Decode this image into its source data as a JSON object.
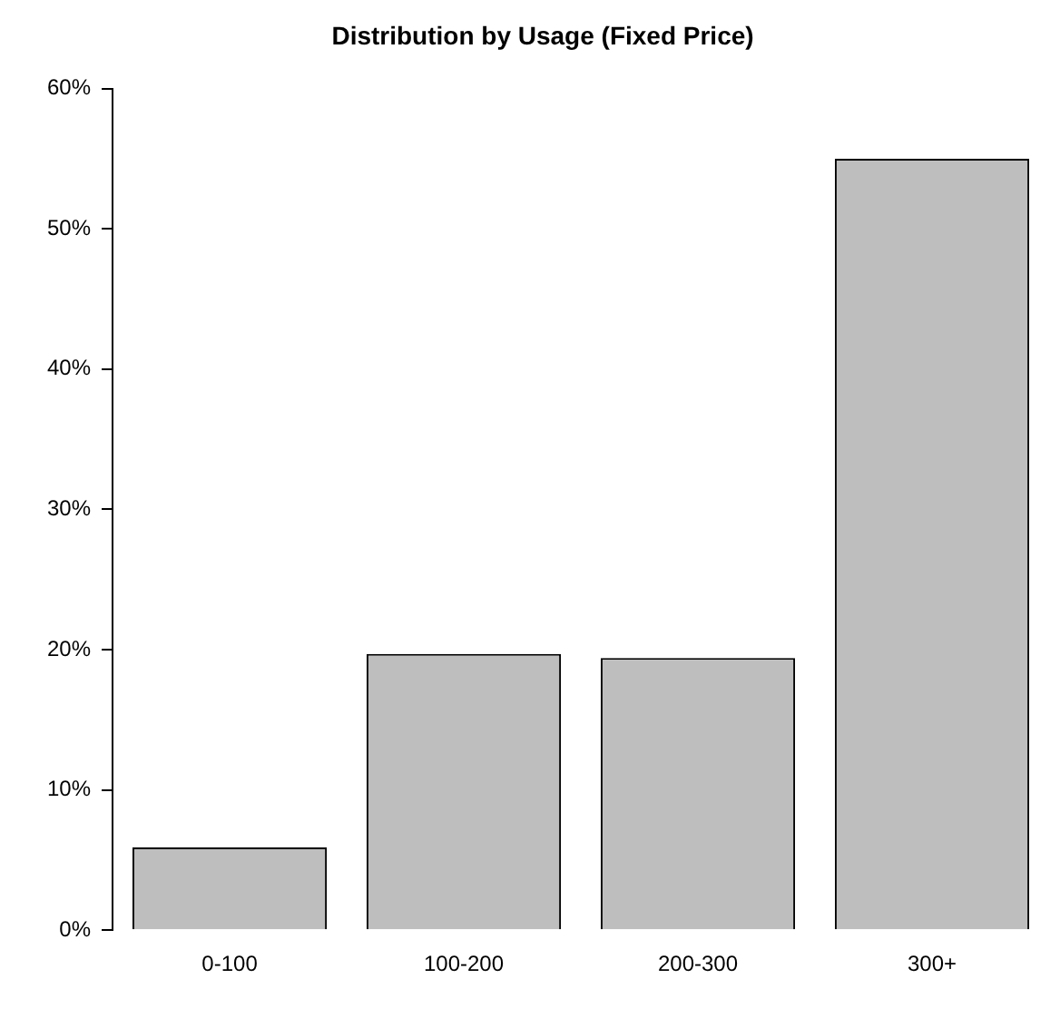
{
  "chart_data": {
    "type": "bar",
    "title": "Distribution by Usage (Fixed Price)",
    "categories": [
      "0-100",
      "100-200",
      "200-300",
      "300+"
    ],
    "values": [
      5.9,
      19.7,
      19.4,
      55.0
    ],
    "color": "#bebebe",
    "ylim": [
      0,
      60
    ],
    "yticks": [
      {
        "value": 0,
        "label": "0%"
      },
      {
        "value": 10,
        "label": "10%"
      },
      {
        "value": 20,
        "label": "20%"
      },
      {
        "value": 30,
        "label": "30%"
      },
      {
        "value": 40,
        "label": "40%"
      },
      {
        "value": 50,
        "label": "50%"
      },
      {
        "value": 60,
        "label": "60%"
      }
    ],
    "grid": false,
    "legend": false
  }
}
